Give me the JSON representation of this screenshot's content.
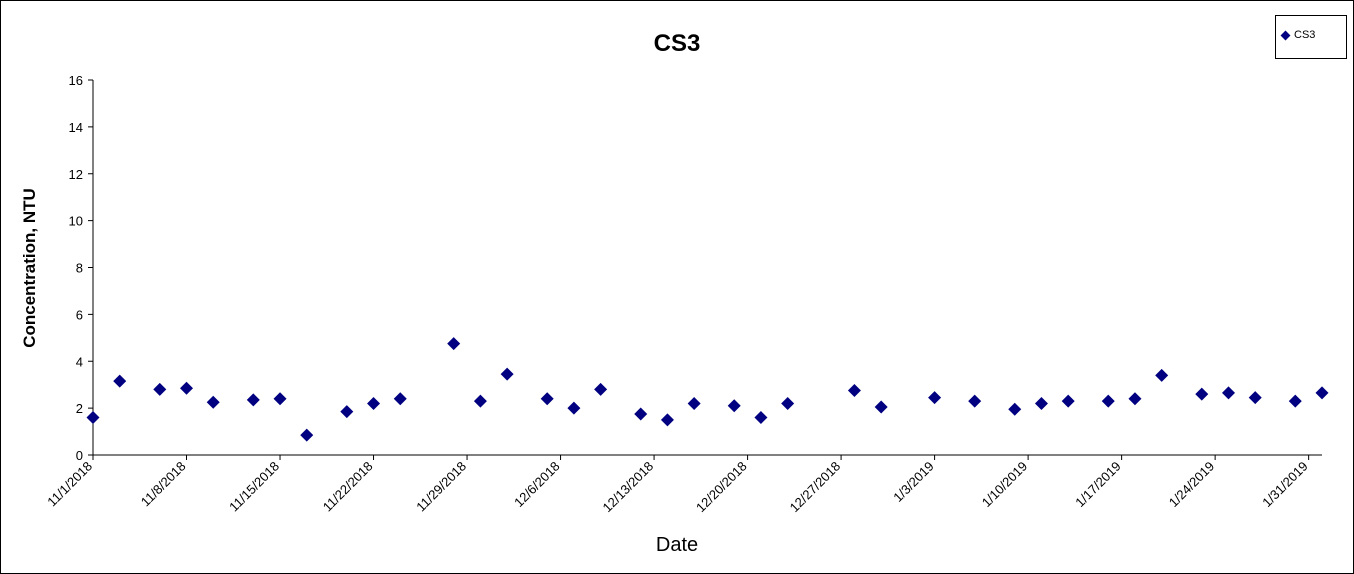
{
  "chart_data": {
    "type": "scatter",
    "title": "CS3",
    "xlabel": "Date",
    "ylabel": "Concentration, NTU",
    "ylim": [
      0,
      16
    ],
    "yticks": [
      "0",
      "2",
      "4",
      "6",
      "8",
      "10",
      "12",
      "14",
      "16"
    ],
    "xlim": [
      "2018-11-01",
      "2019-02-01"
    ],
    "xticks": [
      "11/1/2018",
      "11/8/2018",
      "11/15/2018",
      "11/22/2018",
      "11/29/2018",
      "12/6/2018",
      "12/13/2018",
      "12/20/2018",
      "12/27/2018",
      "1/3/2019",
      "1/10/2019",
      "1/17/2019",
      "1/24/2019",
      "1/31/2019"
    ],
    "grid": false,
    "legend": {
      "position": "top-right",
      "entries": [
        "CS3"
      ]
    },
    "series": [
      {
        "name": "CS3",
        "color": "#000080",
        "marker": "diamond",
        "points": [
          [
            "2018-11-01",
            1.6
          ],
          [
            "2018-11-03",
            3.15
          ],
          [
            "2018-11-06",
            2.8
          ],
          [
            "2018-11-08",
            2.85
          ],
          [
            "2018-11-10",
            2.25
          ],
          [
            "2018-11-13",
            2.35
          ],
          [
            "2018-11-15",
            2.4
          ],
          [
            "2018-11-17",
            0.85
          ],
          [
            "2018-11-20",
            1.85
          ],
          [
            "2018-11-22",
            2.2
          ],
          [
            "2018-11-24",
            2.4
          ],
          [
            "2018-11-28",
            4.75
          ],
          [
            "2018-11-30",
            2.3
          ],
          [
            "2018-12-02",
            3.45
          ],
          [
            "2018-12-05",
            2.4
          ],
          [
            "2018-12-07",
            2.0
          ],
          [
            "2018-12-09",
            2.8
          ],
          [
            "2018-12-12",
            1.75
          ],
          [
            "2018-12-14",
            1.5
          ],
          [
            "2018-12-16",
            2.2
          ],
          [
            "2018-12-19",
            2.1
          ],
          [
            "2018-12-21",
            1.6
          ],
          [
            "2018-12-23",
            2.2
          ],
          [
            "2018-12-28",
            2.75
          ],
          [
            "2018-12-30",
            2.05
          ],
          [
            "2019-01-03",
            2.45
          ],
          [
            "2019-01-06",
            2.3
          ],
          [
            "2019-01-09",
            1.95
          ],
          [
            "2019-01-11",
            2.2
          ],
          [
            "2019-01-13",
            2.3
          ],
          [
            "2019-01-16",
            2.3
          ],
          [
            "2019-01-18",
            2.4
          ],
          [
            "2019-01-20",
            3.4
          ],
          [
            "2019-01-23",
            2.6
          ],
          [
            "2019-01-25",
            2.65
          ],
          [
            "2019-01-27",
            2.45
          ],
          [
            "2019-01-30",
            2.3
          ],
          [
            "2019-02-01",
            2.65
          ]
        ]
      }
    ]
  }
}
